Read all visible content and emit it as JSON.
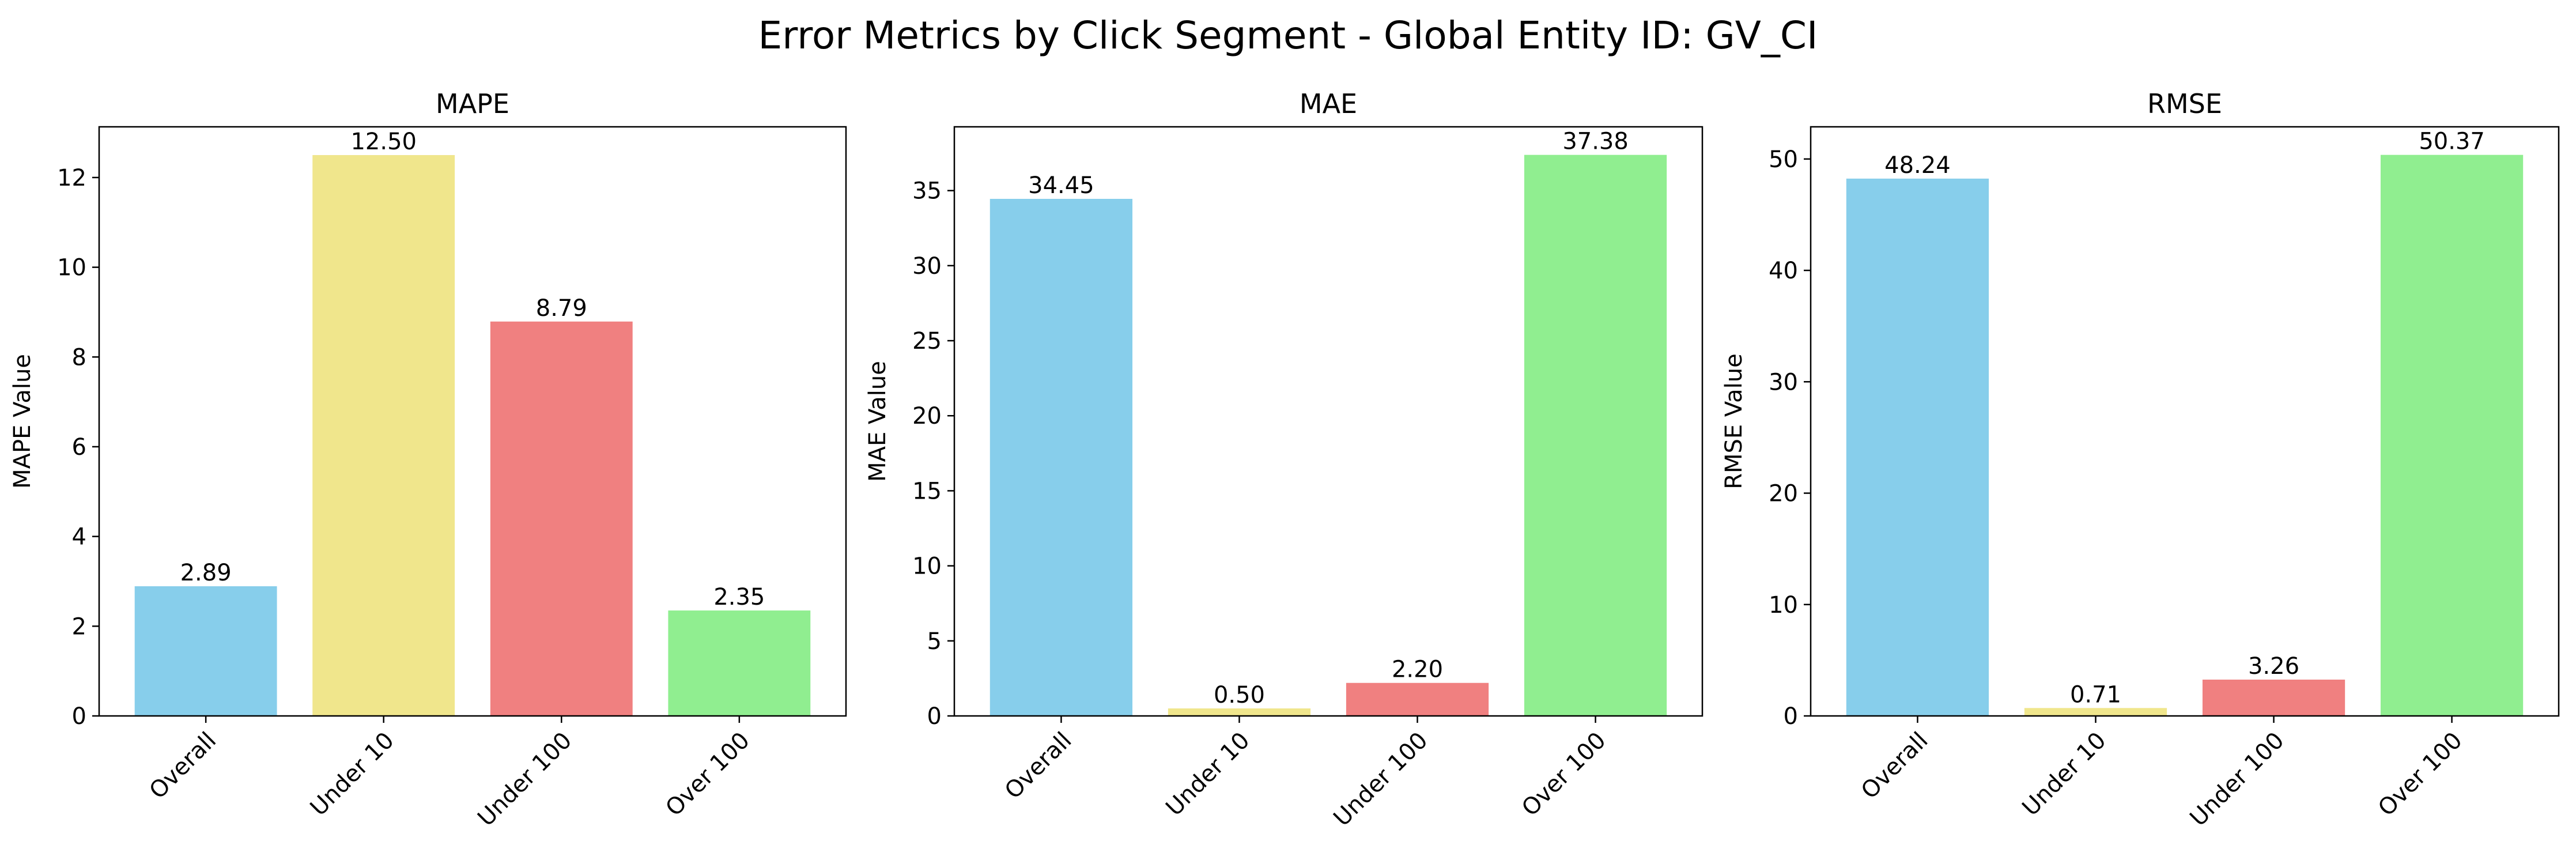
{
  "suptitle": "Error Metrics by Click Segment - Global Entity ID: GV_CI",
  "colors": {
    "Overall": "#87ceeb",
    "Under 10": "#f0e68c",
    "Under 100": "#f08080",
    "Over 100": "#90ee90"
  },
  "chart_data": [
    {
      "type": "bar",
      "title": "MAPE",
      "xlabel": "",
      "ylabel": "MAPE Value",
      "categories": [
        "Overall",
        "Under 10",
        "Under 100",
        "Over 100"
      ],
      "values": [
        2.89,
        12.5,
        8.79,
        2.35
      ],
      "value_labels": [
        "2.89",
        "12.50",
        "8.79",
        "2.35"
      ],
      "ylim": [
        0,
        13.13
      ],
      "yticks": [
        0,
        2,
        4,
        6,
        8,
        10,
        12
      ],
      "grid": false,
      "legend": "none"
    },
    {
      "type": "bar",
      "title": "MAE",
      "xlabel": "",
      "ylabel": "MAE Value",
      "categories": [
        "Overall",
        "Under 10",
        "Under 100",
        "Over 100"
      ],
      "values": [
        34.45,
        0.5,
        2.2,
        37.38
      ],
      "value_labels": [
        "34.45",
        "0.50",
        "2.20",
        "37.38"
      ],
      "ylim": [
        0,
        39.25
      ],
      "yticks": [
        0,
        5,
        10,
        15,
        20,
        25,
        30,
        35
      ],
      "grid": false,
      "legend": "none"
    },
    {
      "type": "bar",
      "title": "RMSE",
      "xlabel": "",
      "ylabel": "RMSE Value",
      "categories": [
        "Overall",
        "Under 10",
        "Under 100",
        "Over 100"
      ],
      "values": [
        48.24,
        0.71,
        3.26,
        50.37
      ],
      "value_labels": [
        "48.24",
        "0.71",
        "3.26",
        "50.37"
      ],
      "ylim": [
        0,
        52.89
      ],
      "yticks": [
        0,
        10,
        20,
        30,
        40,
        50
      ],
      "grid": false,
      "legend": "none"
    }
  ]
}
